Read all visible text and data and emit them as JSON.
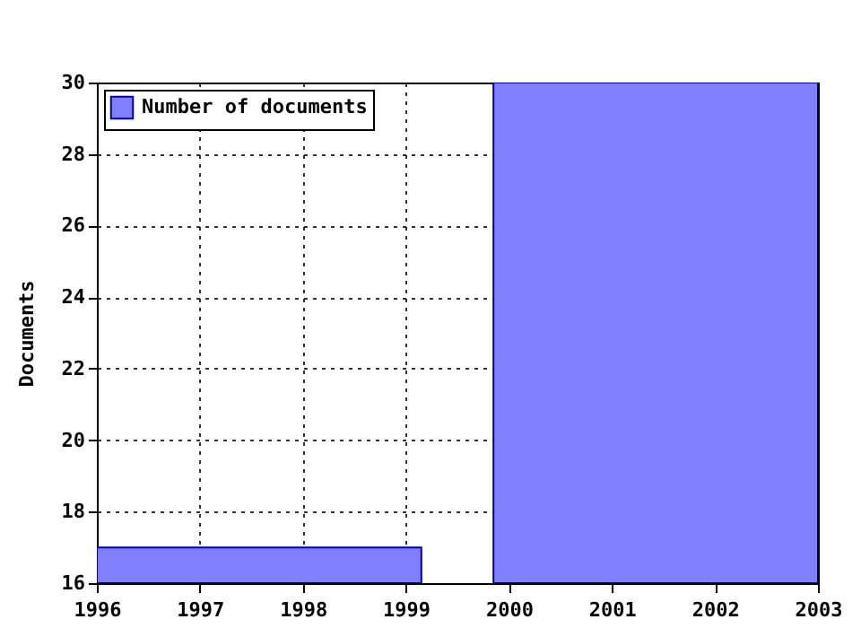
{
  "chart_data": {
    "type": "histogram",
    "ylabel": "Documents",
    "bins": [
      1996,
      1999.15,
      1999.85,
      2003
    ],
    "series": [
      {
        "name": "Number of documents",
        "color": "#8080ff",
        "values": [
          17,
          null,
          30
        ]
      }
    ],
    "xlim": [
      1996,
      2003
    ],
    "xticks": [
      1996,
      1997,
      1998,
      1999,
      2000,
      2001,
      2002,
      2003
    ],
    "ylim": [
      16,
      30
    ],
    "yticks": [
      16,
      18,
      20,
      22,
      24,
      26,
      28,
      30
    ],
    "grid": true,
    "legend": "top left"
  }
}
